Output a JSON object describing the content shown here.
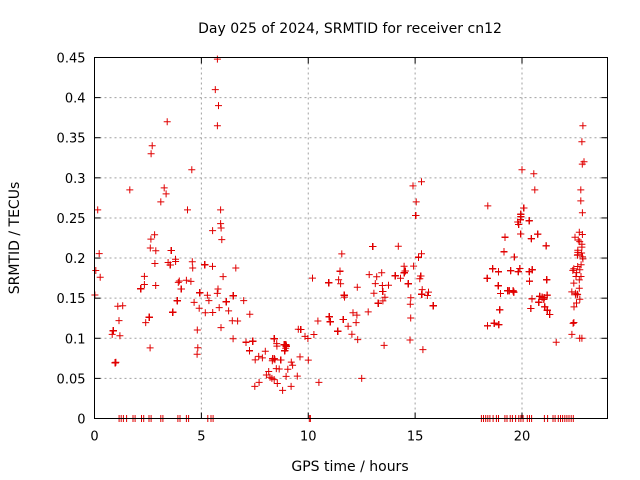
{
  "chart_data": {
    "type": "scatter",
    "title": "Day 025 of 2024, SRMTID for receiver cn12",
    "xlabel": "GPS time / hours",
    "ylabel": "SRMTID / TECUs",
    "xlim": [
      0,
      24
    ],
    "ylim": [
      0,
      0.45
    ],
    "xticks": [
      0,
      5,
      10,
      15,
      20
    ],
    "xtick_labels": [
      "0",
      "5",
      "10",
      "15",
      "20"
    ],
    "yticks": [
      0,
      0.05,
      0.1,
      0.15,
      0.2,
      0.25,
      0.3,
      0.35,
      0.4,
      0.45
    ],
    "ytick_labels": [
      "0",
      "0.05",
      "0.1",
      "0.15",
      "0.2",
      "0.25",
      "0.3",
      "0.35",
      "0.4",
      "0.45"
    ],
    "grid": true,
    "marker": "+",
    "color": "#e00000",
    "series": [
      {
        "name": "SRMTID",
        "trend": [
          [
            0.0,
            0.19
          ],
          [
            0.5,
            0.14
          ],
          [
            1.0,
            0.11
          ],
          [
            1.5,
            0.17
          ],
          [
            2.0,
            0.13
          ],
          [
            2.5,
            0.18
          ],
          [
            3.0,
            0.16
          ],
          [
            3.5,
            0.19
          ],
          [
            4.0,
            0.17
          ],
          [
            4.5,
            0.14
          ],
          [
            5.0,
            0.12
          ],
          [
            5.5,
            0.18
          ],
          [
            6.0,
            0.16
          ],
          [
            6.5,
            0.14
          ],
          [
            7.0,
            0.11
          ],
          [
            7.5,
            0.08
          ],
          [
            8.0,
            0.07
          ],
          [
            8.5,
            0.08
          ],
          [
            9.0,
            0.07
          ],
          [
            9.5,
            0.08
          ],
          [
            10.0,
            0.09
          ],
          [
            10.5,
            0.11
          ],
          [
            11.0,
            0.13
          ],
          [
            11.5,
            0.15
          ],
          [
            12.0,
            0.15
          ],
          [
            12.5,
            0.16
          ],
          [
            13.0,
            0.15
          ],
          [
            13.5,
            0.16
          ],
          [
            14.0,
            0.17
          ],
          [
            14.5,
            0.17
          ],
          [
            15.0,
            0.16
          ],
          [
            15.5,
            0.15
          ],
          [
            15.9,
            0.14
          ],
          [
            18.2,
            0.2
          ],
          [
            18.6,
            0.17
          ],
          [
            19.0,
            0.16
          ],
          [
            19.5,
            0.17
          ],
          [
            20.0,
            0.2
          ],
          [
            20.5,
            0.18
          ],
          [
            21.0,
            0.14
          ],
          [
            21.3,
            0.13
          ],
          [
            22.3,
            0.17
          ],
          [
            22.6,
            0.16
          ],
          [
            22.8,
            0.2
          ]
        ],
        "segments": [
          [
            0.0,
            15.9
          ],
          [
            18.2,
            21.3
          ],
          [
            22.3,
            22.85
          ]
        ],
        "peaks": [
          [
            5.75,
            0.448
          ],
          [
            5.65,
            0.41
          ],
          [
            5.8,
            0.39
          ],
          [
            5.75,
            0.365
          ],
          [
            3.4,
            0.37
          ],
          [
            2.7,
            0.34
          ],
          [
            2.65,
            0.33
          ],
          [
            22.85,
            0.365
          ],
          [
            22.8,
            0.345
          ],
          [
            22.9,
            0.32
          ],
          [
            0.15,
            0.26
          ],
          [
            1.65,
            0.285
          ],
          [
            4.55,
            0.31
          ],
          [
            3.35,
            0.28
          ],
          [
            3.1,
            0.27
          ],
          [
            4.35,
            0.26
          ],
          [
            15.3,
            0.295
          ],
          [
            14.9,
            0.29
          ],
          [
            15.05,
            0.27
          ],
          [
            20.0,
            0.31
          ],
          [
            20.55,
            0.305
          ],
          [
            20.6,
            0.285
          ],
          [
            18.4,
            0.265
          ],
          [
            19.8,
            0.245
          ],
          [
            22.75,
            0.285
          ],
          [
            10.2,
            0.175
          ],
          [
            5.9,
            0.26
          ],
          [
            5.9,
            0.243
          ]
        ],
        "lows": [
          [
            7.5,
            0.04
          ],
          [
            7.7,
            0.045
          ],
          [
            8.3,
            0.05
          ],
          [
            9.2,
            0.04
          ],
          [
            8.8,
            0.035
          ],
          [
            10.5,
            0.045
          ],
          [
            12.5,
            0.05
          ],
          [
            1.0,
            0.07
          ],
          [
            4.8,
            0.08
          ],
          [
            2.6,
            0.088
          ],
          [
            21.6,
            0.095
          ],
          [
            22.8,
            0.1
          ],
          [
            22.7,
            0.1
          ]
        ],
        "zero_markers": [
          1.15,
          1.25,
          1.35,
          1.5,
          1.8,
          1.9,
          2.2,
          2.3,
          2.55,
          2.65,
          3.1,
          3.2,
          3.9,
          4.0,
          4.3,
          4.4,
          5.3,
          5.45,
          5.55,
          10.05,
          10.1,
          18.1,
          18.2,
          18.3,
          18.4,
          18.5,
          18.65,
          18.8,
          18.9,
          19.2,
          19.3,
          19.45,
          19.55,
          19.7,
          19.85,
          19.95,
          20.05,
          20.25,
          20.35,
          20.45,
          21.05,
          21.2,
          21.45,
          21.55,
          21.7,
          21.8,
          21.9,
          22.0,
          22.1,
          22.2,
          22.3,
          22.4
        ]
      }
    ]
  }
}
